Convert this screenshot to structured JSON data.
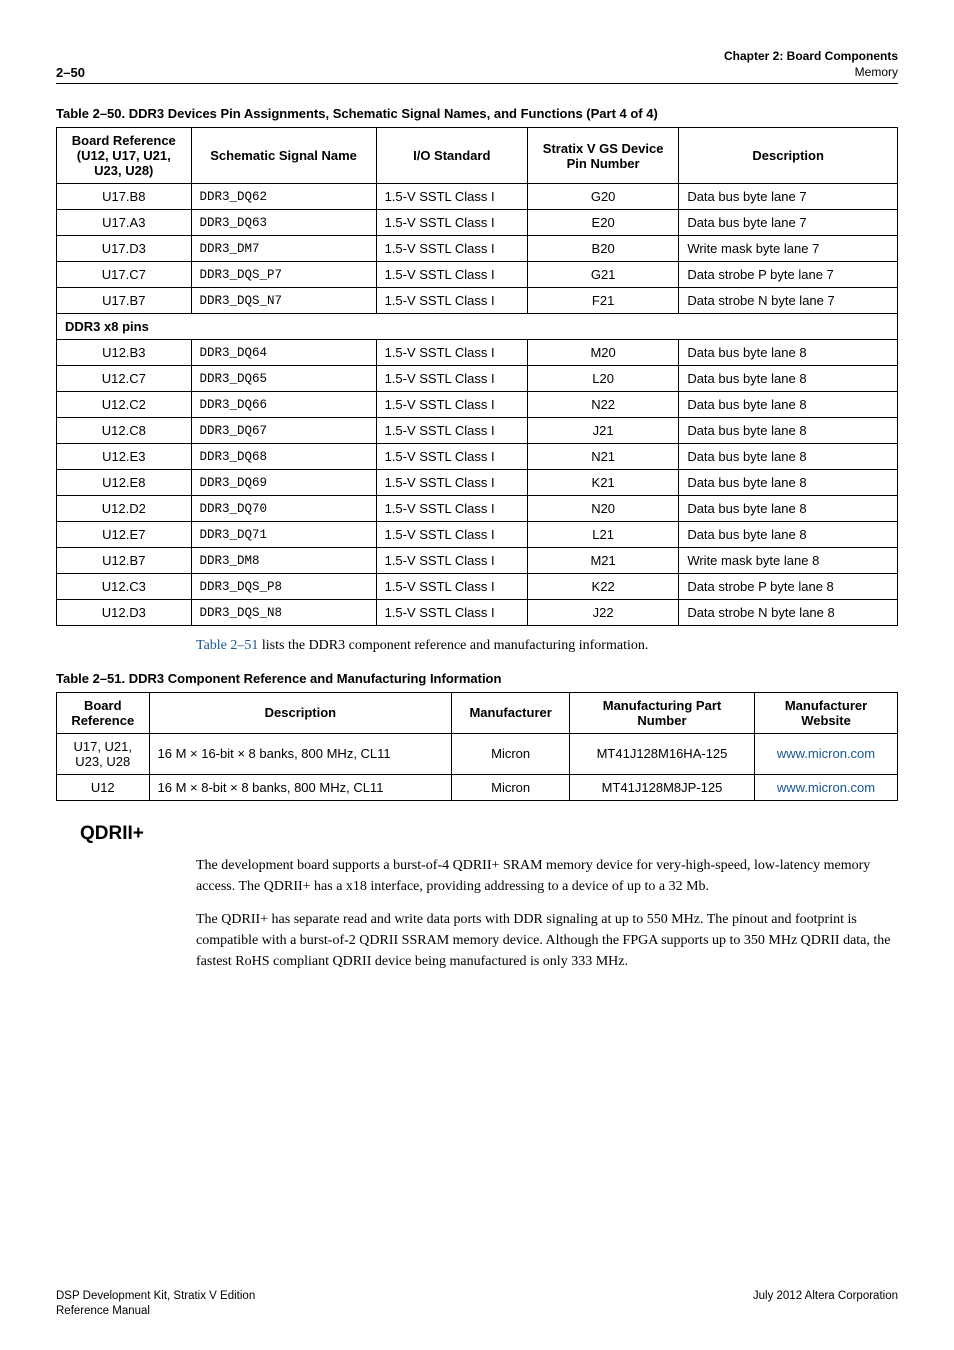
{
  "header": {
    "page_num": "2–50",
    "chapter": "Chapter 2:  Board Components",
    "section": "Memory"
  },
  "table50": {
    "caption": "Table 2–50.  DDR3 Devices Pin Assignments, Schematic Signal Names, and Functions  (Part 4 of 4)",
    "columns": [
      "Board Reference (U12, U17, U21, U23, U28)",
      "Schematic Signal Name",
      "I/O Standard",
      "Stratix V GS Device Pin Number",
      "Description"
    ],
    "pre_section_rows": [
      {
        "ref": "U17.B8",
        "sig": "DDR3_DQ62",
        "io": "1.5-V SSTL Class I",
        "pin": "G20",
        "desc": "Data bus byte lane 7"
      },
      {
        "ref": "U17.A3",
        "sig": "DDR3_DQ63",
        "io": "1.5-V SSTL Class I",
        "pin": "E20",
        "desc": "Data bus byte lane 7"
      },
      {
        "ref": "U17.D3",
        "sig": "DDR3_DM7",
        "io": "1.5-V SSTL Class I",
        "pin": "B20",
        "desc": "Write mask byte lane 7"
      },
      {
        "ref": "U17.C7",
        "sig": "DDR3_DQS_P7",
        "io": "1.5-V SSTL Class I",
        "pin": "G21",
        "desc": "Data strobe P byte lane 7"
      },
      {
        "ref": "U17.B7",
        "sig": "DDR3_DQS_N7",
        "io": "1.5-V SSTL Class I",
        "pin": "F21",
        "desc": "Data strobe N byte lane 7"
      }
    ],
    "section_label": "DDR3 x8 pins",
    "post_section_rows": [
      {
        "ref": "U12.B3",
        "sig": "DDR3_DQ64",
        "io": "1.5-V SSTL Class I",
        "pin": "M20",
        "desc": "Data bus byte lane 8"
      },
      {
        "ref": "U12.C7",
        "sig": "DDR3_DQ65",
        "io": "1.5-V SSTL Class I",
        "pin": "L20",
        "desc": "Data bus byte lane 8"
      },
      {
        "ref": "U12.C2",
        "sig": "DDR3_DQ66",
        "io": "1.5-V SSTL Class I",
        "pin": "N22",
        "desc": "Data bus byte lane 8"
      },
      {
        "ref": "U12.C8",
        "sig": "DDR3_DQ67",
        "io": "1.5-V SSTL Class I",
        "pin": "J21",
        "desc": "Data bus byte lane 8"
      },
      {
        "ref": "U12.E3",
        "sig": "DDR3_DQ68",
        "io": "1.5-V SSTL Class I",
        "pin": "N21",
        "desc": "Data bus byte lane 8"
      },
      {
        "ref": "U12.E8",
        "sig": "DDR3_DQ69",
        "io": "1.5-V SSTL Class I",
        "pin": "K21",
        "desc": "Data bus byte lane 8"
      },
      {
        "ref": "U12.D2",
        "sig": "DDR3_DQ70",
        "io": "1.5-V SSTL Class I",
        "pin": "N20",
        "desc": "Data bus byte lane 8"
      },
      {
        "ref": "U12.E7",
        "sig": "DDR3_DQ71",
        "io": "1.5-V SSTL Class I",
        "pin": "L21",
        "desc": "Data bus byte lane 8"
      },
      {
        "ref": "U12.B7",
        "sig": "DDR3_DM8",
        "io": "1.5-V SSTL Class I",
        "pin": "M21",
        "desc": "Write mask byte lane 8"
      },
      {
        "ref": "U12.C3",
        "sig": "DDR3_DQS_P8",
        "io": "1.5-V SSTL Class I",
        "pin": "K22",
        "desc": "Data strobe P byte lane 8"
      },
      {
        "ref": "U12.D3",
        "sig": "DDR3_DQS_N8",
        "io": "1.5-V SSTL Class I",
        "pin": "J22",
        "desc": "Data strobe N byte lane 8"
      }
    ]
  },
  "bridge": {
    "ref": "Table 2–51",
    "rest": " lists the DDR3 component reference and manufacturing information."
  },
  "table51": {
    "caption": "Table 2–51.  DDR3 Component Reference and Manufacturing Information",
    "columns": [
      "Board Reference",
      "Description",
      "Manufacturer",
      "Manufacturing Part Number",
      "Manufacturer Website"
    ],
    "rows": [
      {
        "ref": "U17, U21, U23, U28",
        "desc": "16 M × 16-bit × 8 banks, 800 MHz, CL11",
        "mfr": "Micron",
        "part": "MT41J128M16HA-125",
        "site": "www.micron.com"
      },
      {
        "ref": "U12",
        "desc": "16 M × 8-bit × 8 banks, 800 MHz, CL11",
        "mfr": "Micron",
        "part": "MT41J128M8JP-125",
        "site": "www.micron.com"
      }
    ]
  },
  "qdr": {
    "heading": "QDRII+",
    "p1": "The development board supports a burst-of-4 QDRII+ SRAM memory device for very-high-speed, low-latency memory access. The QDRII+ has a x18 interface, providing addressing to a device of up to a 32 Mb.",
    "p2": "The QDRII+ has separate read and write data ports with DDR signaling at up to 550 MHz. The pinout and footprint is compatible with a burst-of-2 QDRII SSRAM memory device. Although the FPGA supports up to 350 MHz QDRII data, the fastest RoHS compliant QDRII device being manufactured is only 333 MHz."
  },
  "footer": {
    "left_line1": "DSP Development Kit, Stratix V Edition",
    "left_line2": "Reference Manual",
    "right": "July 2012   Altera Corporation"
  },
  "colors": {
    "link": "#185691",
    "text": "#000000",
    "table_border": "#000000",
    "background": "#ffffff"
  },
  "fonts": {
    "sans": "Arial, Helvetica, sans-serif",
    "serif": "Georgia, Times New Roman, serif",
    "mono": "Courier New, Courier, monospace",
    "body_size_pt": 10.5,
    "heading_size_pt": 14
  }
}
